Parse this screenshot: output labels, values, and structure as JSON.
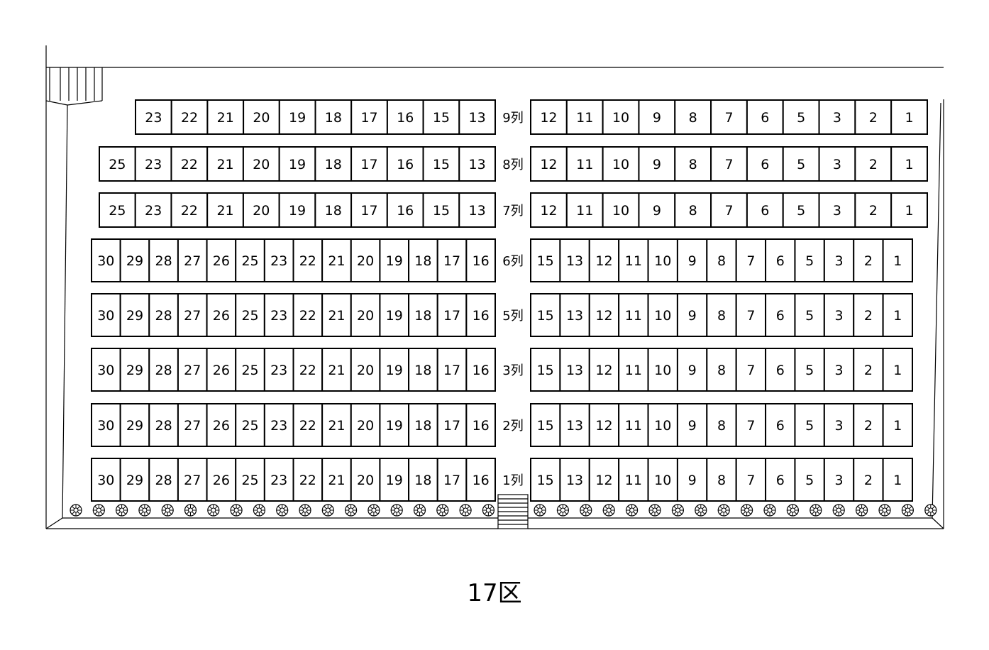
{
  "section_title": "17区",
  "rows": [
    {
      "label": "9列",
      "left": [
        "23",
        "22",
        "21",
        "20",
        "19",
        "18",
        "17",
        "16",
        "15",
        "13"
      ],
      "right": [
        "12",
        "11",
        "10",
        "9",
        "8",
        "7",
        "6",
        "5",
        "3",
        "2",
        "1"
      ]
    },
    {
      "label": "8列",
      "left": [
        "25",
        "23",
        "22",
        "21",
        "20",
        "19",
        "18",
        "17",
        "16",
        "15",
        "13"
      ],
      "right": [
        "12",
        "11",
        "10",
        "9",
        "8",
        "7",
        "6",
        "5",
        "3",
        "2",
        "1"
      ]
    },
    {
      "label": "7列",
      "left": [
        "25",
        "23",
        "22",
        "21",
        "20",
        "19",
        "18",
        "17",
        "16",
        "15",
        "13"
      ],
      "right": [
        "12",
        "11",
        "10",
        "9",
        "8",
        "7",
        "6",
        "5",
        "3",
        "2",
        "1"
      ]
    },
    {
      "label": "6列",
      "left": [
        "30",
        "29",
        "28",
        "27",
        "26",
        "25",
        "23",
        "22",
        "21",
        "20",
        "19",
        "18",
        "17",
        "16"
      ],
      "right": [
        "15",
        "13",
        "12",
        "11",
        "10",
        "9",
        "8",
        "7",
        "6",
        "5",
        "3",
        "2",
        "1"
      ]
    },
    {
      "label": "5列",
      "left": [
        "30",
        "29",
        "28",
        "27",
        "26",
        "25",
        "23",
        "22",
        "21",
        "20",
        "19",
        "18",
        "17",
        "16"
      ],
      "right": [
        "15",
        "13",
        "12",
        "11",
        "10",
        "9",
        "8",
        "7",
        "6",
        "5",
        "3",
        "2",
        "1"
      ]
    },
    {
      "label": "3列",
      "left": [
        "30",
        "29",
        "28",
        "27",
        "26",
        "25",
        "23",
        "22",
        "21",
        "20",
        "19",
        "18",
        "17",
        "16"
      ],
      "right": [
        "15",
        "13",
        "12",
        "11",
        "10",
        "9",
        "8",
        "7",
        "6",
        "5",
        "3",
        "2",
        "1"
      ]
    },
    {
      "label": "2列",
      "left": [
        "30",
        "29",
        "28",
        "27",
        "26",
        "25",
        "23",
        "22",
        "21",
        "20",
        "19",
        "18",
        "17",
        "16"
      ],
      "right": [
        "15",
        "13",
        "12",
        "11",
        "10",
        "9",
        "8",
        "7",
        "6",
        "5",
        "3",
        "2",
        "1"
      ]
    },
    {
      "label": "1列",
      "left": [
        "30",
        "29",
        "28",
        "27",
        "26",
        "25",
        "23",
        "22",
        "21",
        "20",
        "19",
        "18",
        "17",
        "16"
      ],
      "right": [
        "15",
        "13",
        "12",
        "11",
        "10",
        "9",
        "8",
        "7",
        "6",
        "5",
        "3",
        "2",
        "1"
      ]
    }
  ],
  "icons": {
    "shrub": "shrub-icon",
    "stairs": "stairs-icon",
    "gate": "gate-icon"
  }
}
